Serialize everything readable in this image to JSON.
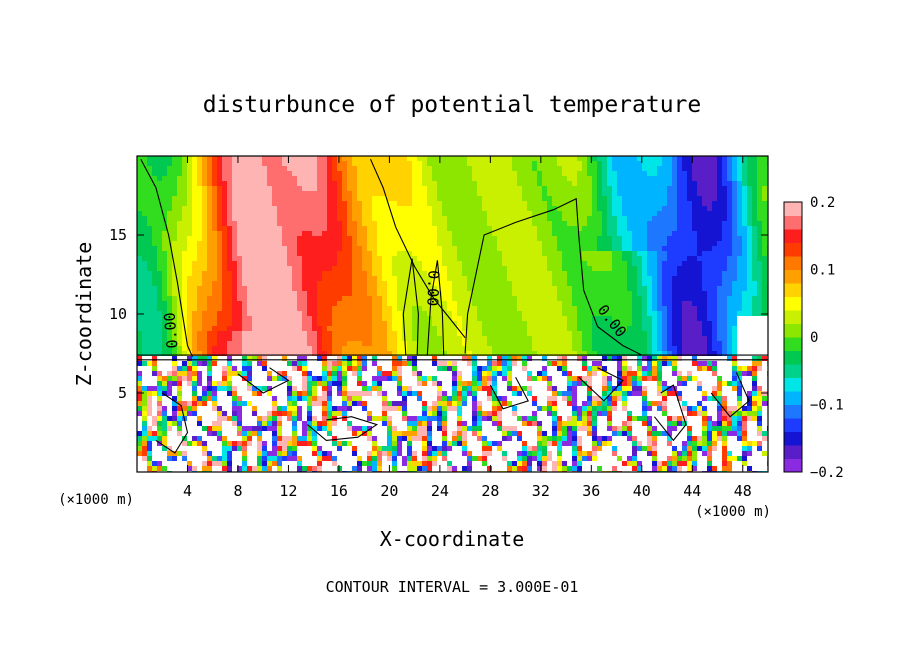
{
  "chart_data": {
    "type": "heatmap",
    "title": "disturbunce of potential temperature",
    "xlabel": "X-coordinate",
    "ylabel": "Z-coordinate",
    "x_unit": "(×1000 m)",
    "y_unit": "(×1000 m)",
    "xlim": [
      0,
      50
    ],
    "ylim": [
      0,
      20
    ],
    "x_ticks": [
      4,
      8,
      12,
      16,
      20,
      24,
      28,
      32,
      36,
      40,
      44,
      48
    ],
    "y_ticks": [
      5,
      10,
      15
    ],
    "colorbar": {
      "min": -0.2,
      "max": 0.2,
      "tick_values": [
        0.2,
        0.1,
        0,
        -0.1,
        -0.2
      ],
      "tick_labels": [
        "0.2",
        "0.1",
        "0",
        "−0.1",
        "−0.2"
      ],
      "colors": [
        "#8a2be2",
        "#5a1ec8",
        "#1414d2",
        "#1e3cff",
        "#1e78ff",
        "#00b4ff",
        "#00e6e6",
        "#00d28c",
        "#00c850",
        "#32dc1e",
        "#8ce600",
        "#c8f000",
        "#ffff00",
        "#ffd200",
        "#ffa000",
        "#ff7800",
        "#ff3c00",
        "#ff1e1e",
        "#ff6e6e",
        "#ffb4b4"
      ]
    },
    "contour_labels": [
      "0.00",
      "0.00",
      "0.00"
    ],
    "footer": "CONTOUR INTERVAL = 3.000E-01"
  }
}
